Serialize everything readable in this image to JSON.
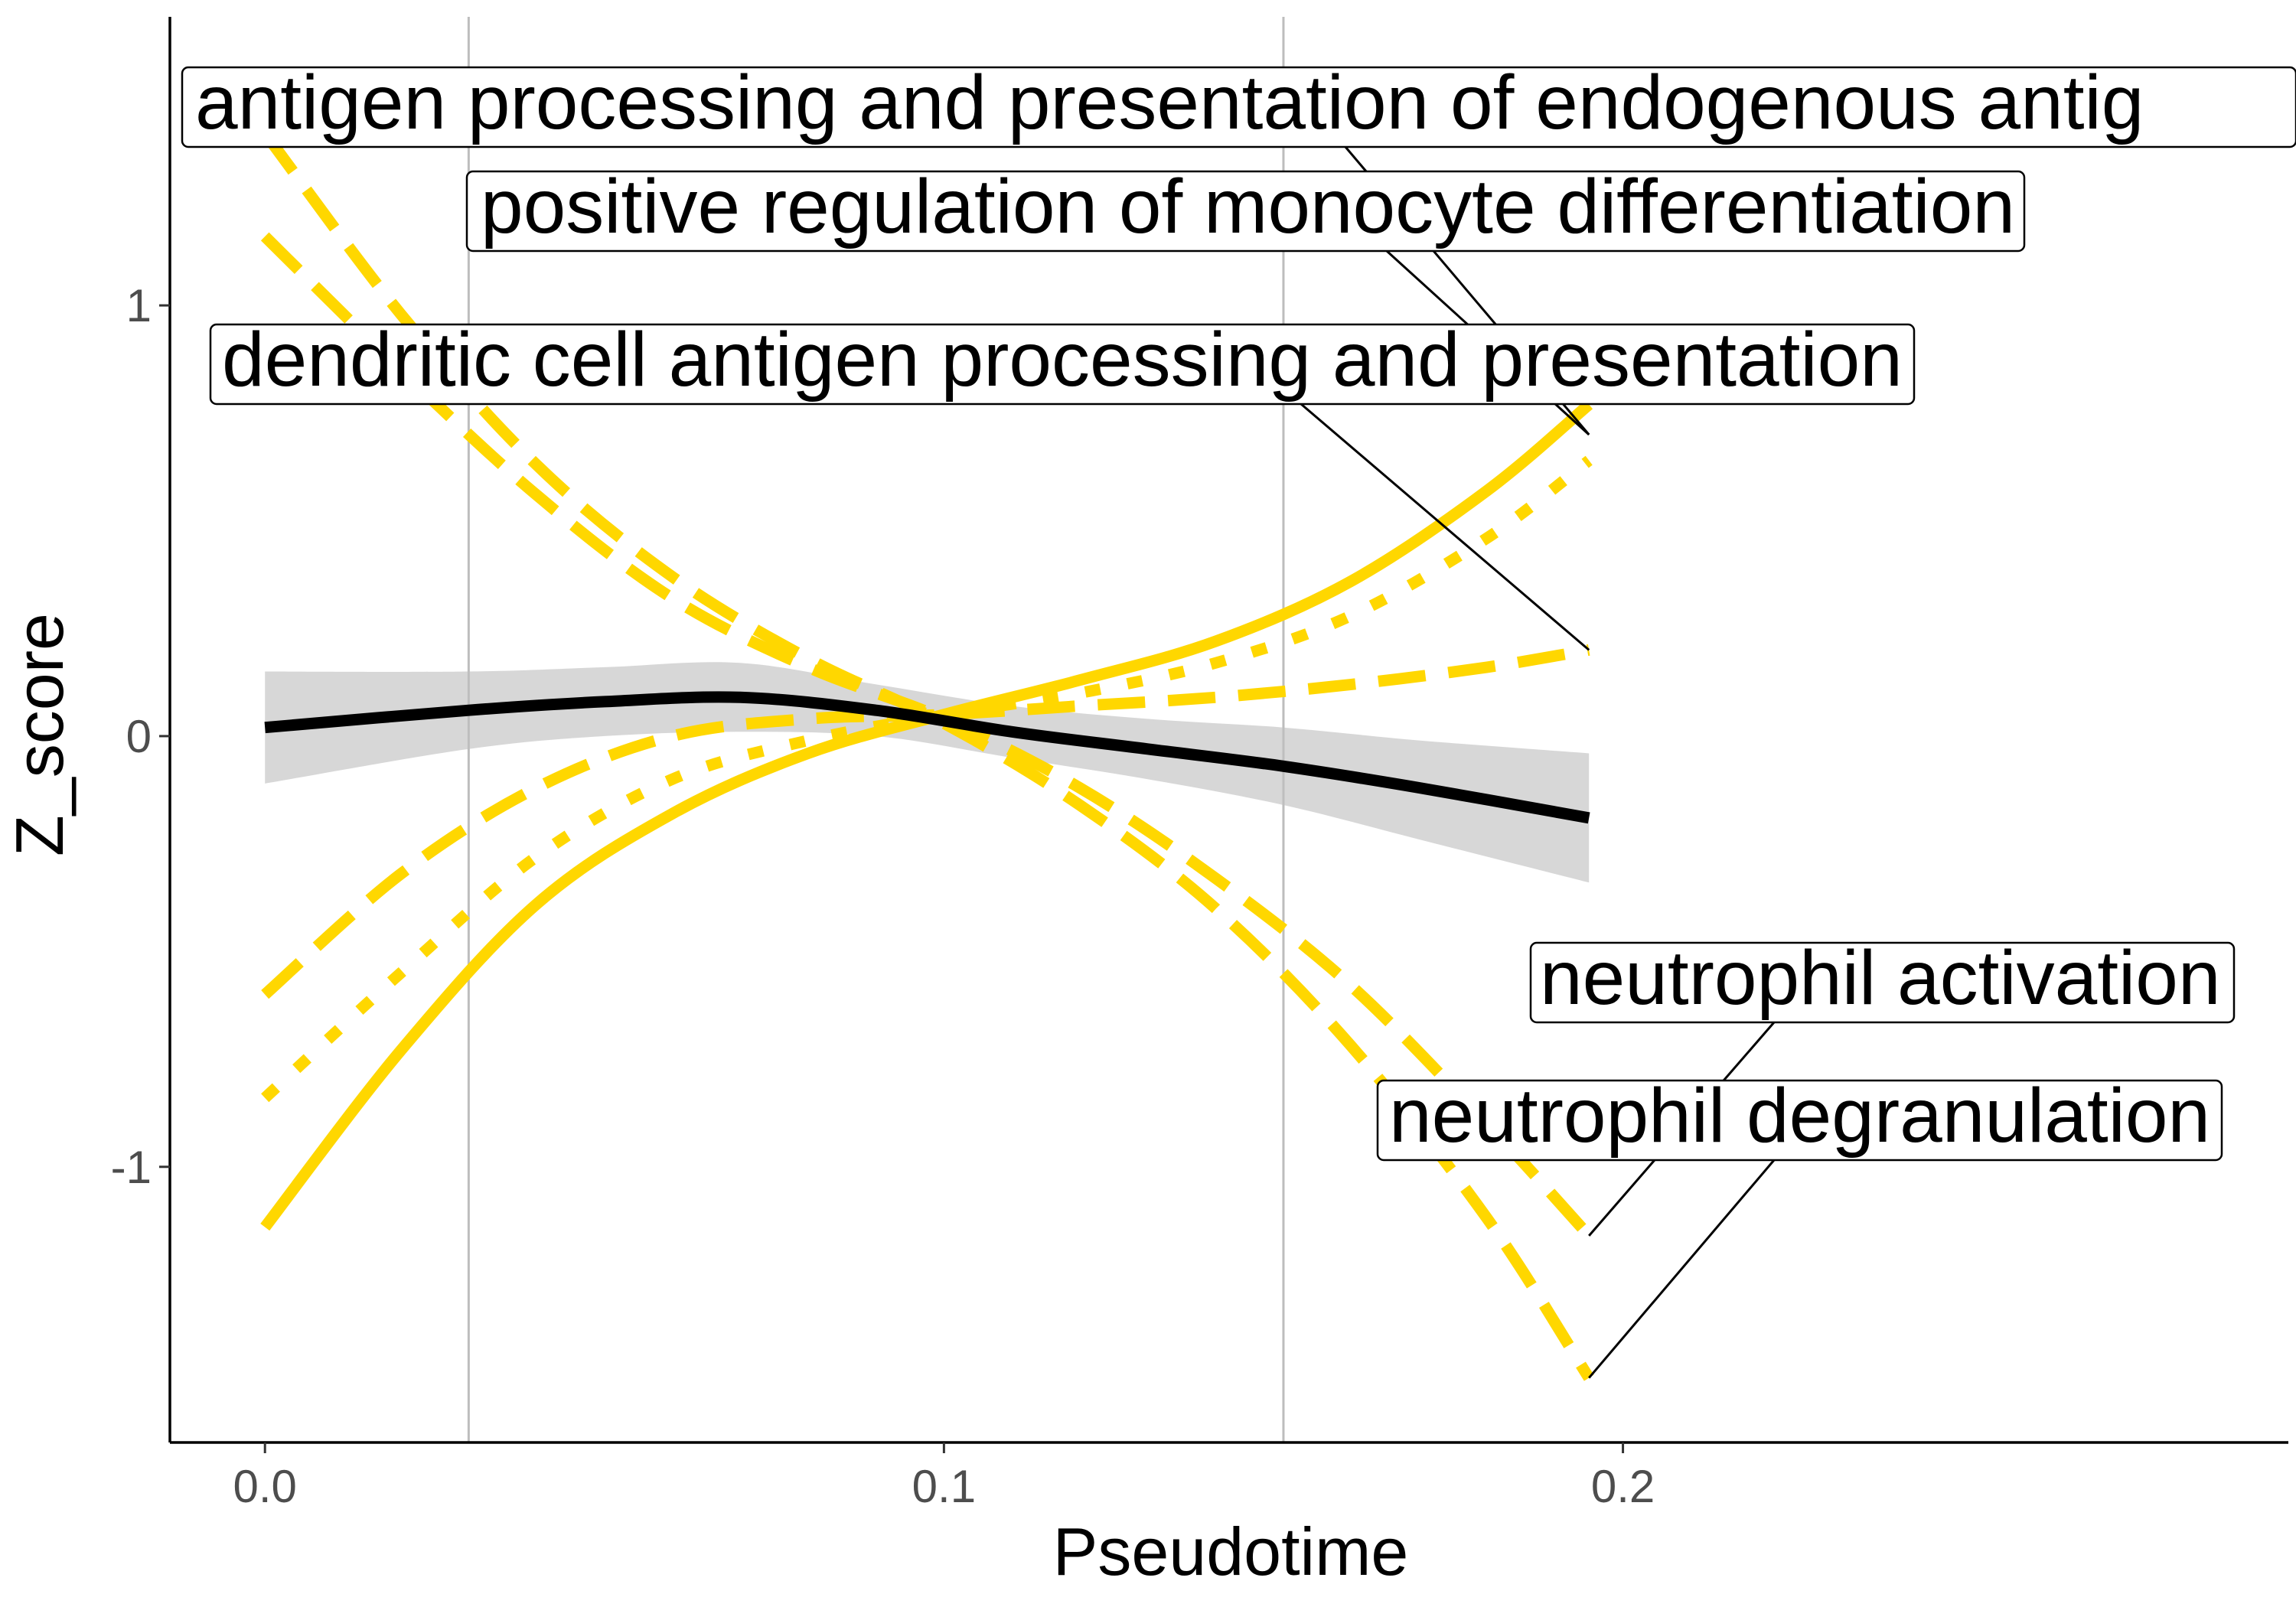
{
  "chart_data": {
    "type": "line",
    "title": "",
    "xlabel": "Pseudotime",
    "ylabel": "Z_score",
    "xlim": [
      -0.014,
      0.298
    ],
    "ylim": [
      -1.64,
      1.67
    ],
    "xticks": [
      0.0,
      0.1,
      0.2
    ],
    "xtick_labels": [
      "0.0",
      "0.1",
      "0.2"
    ],
    "yticks": [
      -1,
      0,
      1
    ],
    "ytick_labels": [
      "-1",
      "0",
      "1"
    ],
    "vlines": [
      0.03,
      0.15
    ],
    "grid": false,
    "legend": "none",
    "colors": {
      "pathway": "#FFD700",
      "mean": "#000000",
      "ribbon": "#BEBEBE",
      "vline": "#BDBDBD"
    },
    "series": [
      {
        "name": "antigen processing and presentation of endogenous antigen",
        "style": "dashed",
        "x": [
          0.0,
          0.02,
          0.04,
          0.06,
          0.08,
          0.1,
          0.12,
          0.14,
          0.16,
          0.18,
          0.195
        ],
        "y": [
          1.4,
          0.98,
          0.63,
          0.37,
          0.18,
          0.03,
          -0.16,
          -0.4,
          -0.72,
          -1.12,
          -1.49
        ]
      },
      {
        "name": "positive regulation of monocyte differentiation",
        "style": "dashed",
        "x": [
          0.0,
          0.02,
          0.04,
          0.06,
          0.08,
          0.1,
          0.12,
          0.14,
          0.16,
          0.18,
          0.195
        ],
        "y": [
          1.16,
          0.85,
          0.56,
          0.32,
          0.16,
          0.04,
          -0.12,
          -0.33,
          -0.58,
          -0.9,
          -1.16
        ]
      },
      {
        "name": "dendritic cell antigen processing and presentation",
        "style": "dashed",
        "x": [
          0.0,
          0.02,
          0.04,
          0.06,
          0.08,
          0.1,
          0.12,
          0.14,
          0.16,
          0.18,
          0.195
        ],
        "y": [
          -0.6,
          -0.32,
          -0.12,
          0.0,
          0.04,
          0.05,
          0.07,
          0.09,
          0.12,
          0.16,
          0.2
        ]
      },
      {
        "name": "neutrophil activation",
        "style": "dotted",
        "x": [
          0.0,
          0.02,
          0.04,
          0.06,
          0.08,
          0.1,
          0.12,
          0.14,
          0.16,
          0.18,
          0.195
        ],
        "y": [
          -0.84,
          -0.55,
          -0.28,
          -0.1,
          -0.01,
          0.05,
          0.1,
          0.17,
          0.28,
          0.46,
          0.64
        ]
      },
      {
        "name": "neutrophil degranulation",
        "style": "solid",
        "x": [
          0.0,
          0.02,
          0.04,
          0.06,
          0.08,
          0.1,
          0.12,
          0.14,
          0.16,
          0.18,
          0.195
        ],
        "y": [
          -1.14,
          -0.73,
          -0.39,
          -0.18,
          -0.04,
          0.05,
          0.13,
          0.22,
          0.36,
          0.57,
          0.77
        ]
      }
    ],
    "mean_trend": {
      "x": [
        0.0,
        0.03,
        0.05,
        0.07,
        0.09,
        0.11,
        0.13,
        0.15,
        0.17,
        0.195
      ],
      "y": [
        0.02,
        0.06,
        0.08,
        0.09,
        0.06,
        0.01,
        -0.03,
        -0.07,
        -0.12,
        -0.19
      ],
      "ci_lower": [
        -0.11,
        -0.03,
        0.0,
        0.01,
        0.0,
        -0.05,
        -0.1,
        -0.16,
        -0.24,
        -0.34
      ],
      "ci_upper": [
        0.15,
        0.15,
        0.16,
        0.17,
        0.12,
        0.07,
        0.04,
        0.02,
        -0.01,
        -0.04
      ]
    },
    "annotations": [
      {
        "text": "antigen processing and presentation of endogenous antig",
        "target_x": 0.195,
        "target_y": 0.7
      },
      {
        "text": "positive regulation of monocyte differentiation",
        "target_x": 0.195,
        "target_y": 0.7
      },
      {
        "text": "dendritic cell antigen processing and presentation",
        "target_x": 0.195,
        "target_y": 0.2
      },
      {
        "text": "neutrophil activation",
        "target_x": 0.195,
        "target_y": -1.16
      },
      {
        "text": "neutrophil degranulation",
        "target_x": 0.195,
        "target_y": -1.49
      }
    ]
  }
}
